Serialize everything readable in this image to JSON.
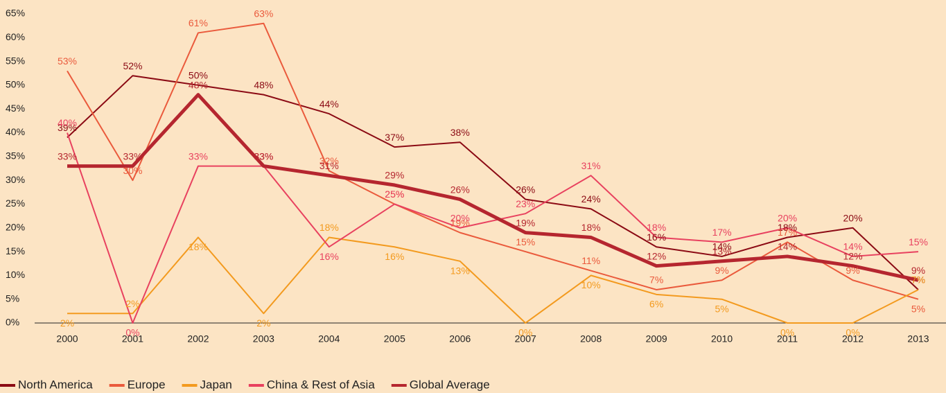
{
  "chart_data": {
    "type": "line",
    "categories": [
      "2000",
      "2001",
      "2002",
      "2003",
      "2004",
      "2005",
      "2006",
      "2007",
      "2008",
      "2009",
      "2010",
      "2011",
      "2012",
      "2013"
    ],
    "series": [
      {
        "name": "North America",
        "color": "#8b0a14",
        "width": 2,
        "values": [
          39,
          52,
          50,
          48,
          44,
          37,
          38,
          26,
          24,
          16,
          14,
          18,
          20,
          7
        ],
        "value_labels": [
          "39%",
          "52%",
          "50%",
          "48%",
          "44%",
          "37%",
          "38%",
          "26%",
          "24%",
          "16%",
          "14%",
          "18%",
          "20%",
          "7%"
        ]
      },
      {
        "name": "Europe",
        "color": "#ea5a3c",
        "width": 2,
        "values": [
          53,
          30,
          61,
          63,
          32,
          25,
          19,
          15,
          11,
          7,
          9,
          17,
          9,
          5
        ],
        "value_labels": [
          "53%",
          "30%",
          "61%",
          "63%",
          "32%",
          "25%",
          "19%",
          "15%",
          "11%",
          "7%",
          "9%",
          "17%",
          "9%",
          "5%"
        ]
      },
      {
        "name": "Japan",
        "color": "#f39a1e",
        "width": 2,
        "values": [
          2,
          2,
          18,
          2,
          18,
          16,
          13,
          0,
          10,
          6,
          5,
          0,
          0,
          7
        ],
        "value_labels": [
          "2%",
          "2%",
          "18%",
          "2%",
          "18%",
          "16%",
          "13%",
          "0%",
          "10%",
          "6%",
          "5%",
          "0%",
          "0%",
          "7%"
        ]
      },
      {
        "name": "China & Rest of Asia",
        "color": "#e8415f",
        "width": 2,
        "values": [
          40,
          0,
          33,
          33,
          16,
          25,
          20,
          23,
          31,
          18,
          17,
          20,
          14,
          15
        ],
        "value_labels": [
          "40%",
          "0%",
          "33%",
          "33%",
          "16%",
          "25%",
          "20%",
          "23%",
          "31%",
          "18%",
          "17%",
          "20%",
          "14%",
          "15%"
        ]
      },
      {
        "name": "Global Average",
        "color": "#b5262f",
        "width": 5,
        "values": [
          33,
          33,
          48,
          33,
          31,
          29,
          26,
          19,
          18,
          12,
          13,
          14,
          12,
          9
        ],
        "value_labels": [
          "33%",
          "33%",
          "48%",
          "33%",
          "31%",
          "29%",
          "26%",
          "19%",
          "18%",
          "12%",
          "13%",
          "14%",
          "12%",
          "9%"
        ]
      }
    ],
    "ylim": [
      0,
      65
    ],
    "yticks": [
      {
        "value": 0,
        "label": "0%"
      },
      {
        "value": 5,
        "label": "5%"
      },
      {
        "value": 10,
        "label": "10%"
      },
      {
        "value": 15,
        "label": "15%"
      },
      {
        "value": 20,
        "label": "20%"
      },
      {
        "value": 25,
        "label": "25%"
      },
      {
        "value": 30,
        "label": "30%"
      },
      {
        "value": 35,
        "label": "35%"
      },
      {
        "value": 40,
        "label": "40%"
      },
      {
        "value": 45,
        "label": "45%"
      },
      {
        "value": 50,
        "label": "50%"
      },
      {
        "value": 55,
        "label": "55%"
      },
      {
        "value": 60,
        "label": "60%"
      },
      {
        "value": 65,
        "label": "65%"
      }
    ],
    "legend": "bottom-left"
  }
}
